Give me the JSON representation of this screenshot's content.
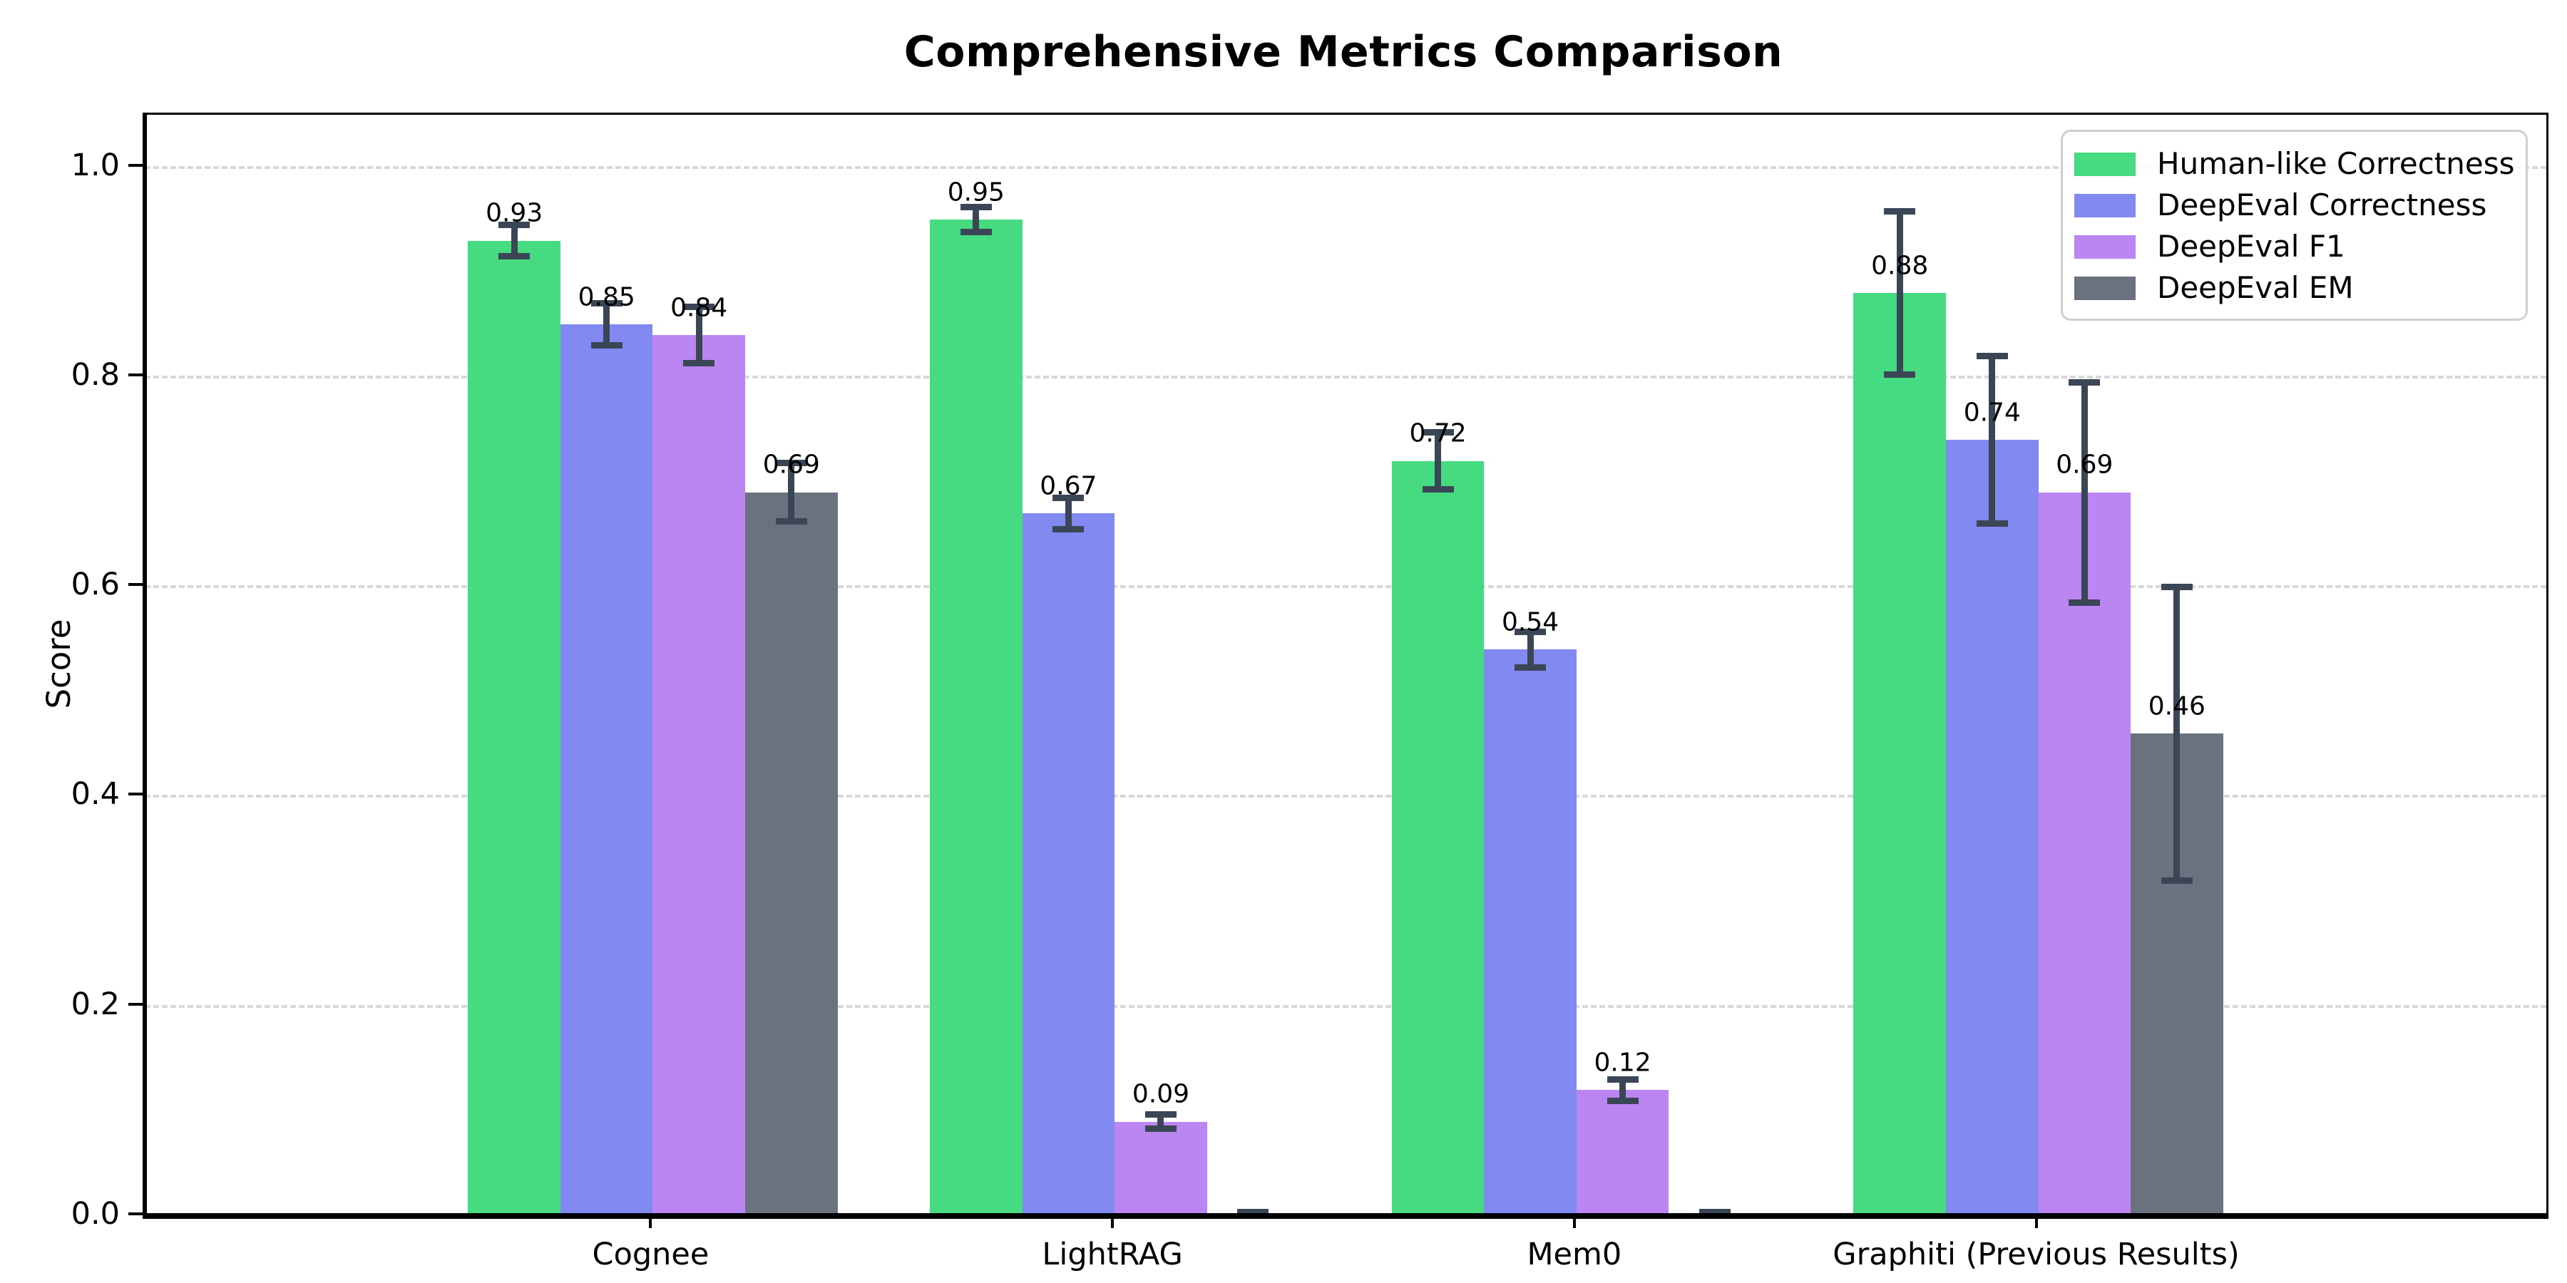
{
  "chart_data": {
    "type": "bar",
    "title": "Comprehensive Metrics Comparison",
    "xlabel": "",
    "ylabel": "Score",
    "ylim": [
      0,
      1.05
    ],
    "yticks": [
      0.0,
      0.2,
      0.4,
      0.6,
      0.8,
      1.0
    ],
    "grid": "horizontal dashed gridlines at y ticks",
    "legend_position": "upper right",
    "background": "#ffffff",
    "grid_color": "#d8d8d8",
    "axis_color": "#000000",
    "error_bar_color": "#3a4556",
    "categories": [
      "Cognee",
      "LightRAG",
      "Mem0",
      "Graphiti (Previous Results)"
    ],
    "series": [
      {
        "name": "Human-like Correctness",
        "color": "#47db81",
        "values": [
          0.93,
          0.95,
          0.72,
          0.88
        ],
        "errors": [
          0.015,
          0.012,
          0.027,
          0.078
        ],
        "labels": [
          "0.93",
          "0.95",
          "0.72",
          "0.88"
        ]
      },
      {
        "name": "DeepEval Correctness",
        "color": "#8289f0",
        "values": [
          0.85,
          0.67,
          0.54,
          0.74
        ],
        "errors": [
          0.02,
          0.015,
          0.017,
          0.08
        ],
        "labels": [
          "0.85",
          "0.67",
          "0.54",
          "0.74"
        ]
      },
      {
        "name": "DeepEval F1",
        "color": "#bb86f2",
        "values": [
          0.84,
          0.09,
          0.12,
          0.69
        ],
        "errors": [
          0.027,
          0.007,
          0.01,
          0.105
        ],
        "labels": [
          "0.84",
          "0.09",
          "0.12",
          "0.69"
        ]
      },
      {
        "name": "DeepEval EM",
        "color": "#6a7280",
        "values": [
          0.69,
          0.0,
          0.0,
          0.46
        ],
        "errors": [
          0.028,
          0.004,
          0.004,
          0.14
        ],
        "labels": [
          "0.69",
          "",
          "",
          "0.46"
        ]
      }
    ]
  }
}
